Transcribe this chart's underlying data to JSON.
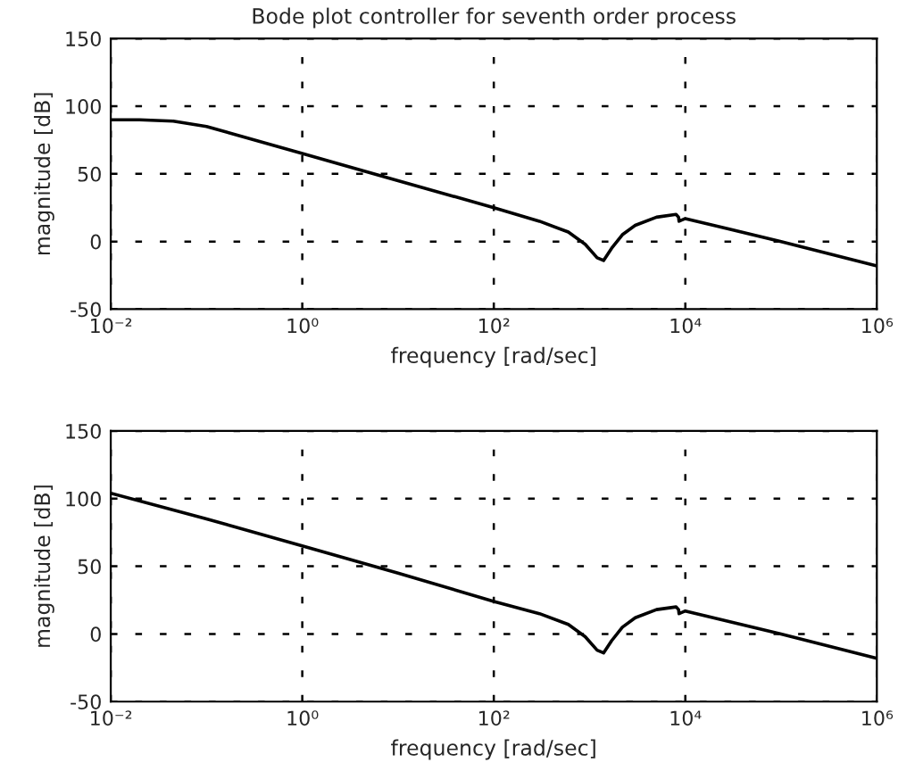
{
  "chart_data": [
    {
      "type": "line",
      "title": "Bode plot controller for seventh order process",
      "xlabel": "frequency [rad/sec]",
      "ylabel": "magnitude [dB]",
      "log": "x",
      "grid": true,
      "xlim": [
        0.01,
        1000000
      ],
      "ylim": [
        -50,
        150
      ],
      "xticks": [
        {
          "value": 0.01,
          "label": "10⁻²"
        },
        {
          "value": 1,
          "label": "10⁰"
        },
        {
          "value": 100,
          "label": "10²"
        },
        {
          "value": 10000,
          "label": "10⁴"
        },
        {
          "value": 1000000,
          "label": "10⁶"
        }
      ],
      "yticks": [
        -50,
        0,
        50,
        100,
        150
      ],
      "series": [
        {
          "color": "#000000",
          "x": [
            0.01,
            0.02,
            0.045,
            0.1,
            1,
            10,
            100,
            300,
            600,
            900,
            1200,
            1400,
            1700,
            2200,
            3000,
            5000,
            8000,
            8500,
            8600,
            10000,
            100000,
            1000000
          ],
          "values": [
            90,
            90,
            89,
            85,
            65,
            45,
            25,
            15,
            7,
            -2,
            -12,
            -14,
            -5,
            5,
            12,
            18,
            20,
            18,
            15,
            17,
            0,
            -18
          ]
        }
      ]
    },
    {
      "type": "line",
      "xlabel": "frequency [rad/sec]",
      "ylabel": "magnitude [dB]",
      "log": "x",
      "grid": true,
      "xlim": [
        0.01,
        1000000
      ],
      "ylim": [
        -50,
        150
      ],
      "xticks": [
        {
          "value": 0.01,
          "label": "10⁻²"
        },
        {
          "value": 1,
          "label": "10⁰"
        },
        {
          "value": 100,
          "label": "10²"
        },
        {
          "value": 10000,
          "label": "10⁴"
        },
        {
          "value": 1000000,
          "label": "10⁶"
        }
      ],
      "yticks": [
        -50,
        0,
        50,
        100,
        150
      ],
      "series": [
        {
          "color": "#000000",
          "x": [
            0.01,
            0.1,
            1,
            10,
            100,
            300,
            600,
            900,
            1200,
            1400,
            1700,
            2200,
            3000,
            5000,
            8000,
            8500,
            8600,
            10000,
            100000,
            1000000
          ],
          "values": [
            104,
            85,
            65,
            45,
            24,
            15,
            7,
            -2,
            -12,
            -14,
            -5,
            5,
            12,
            18,
            20,
            18,
            15,
            17,
            0,
            -18
          ]
        }
      ]
    }
  ]
}
